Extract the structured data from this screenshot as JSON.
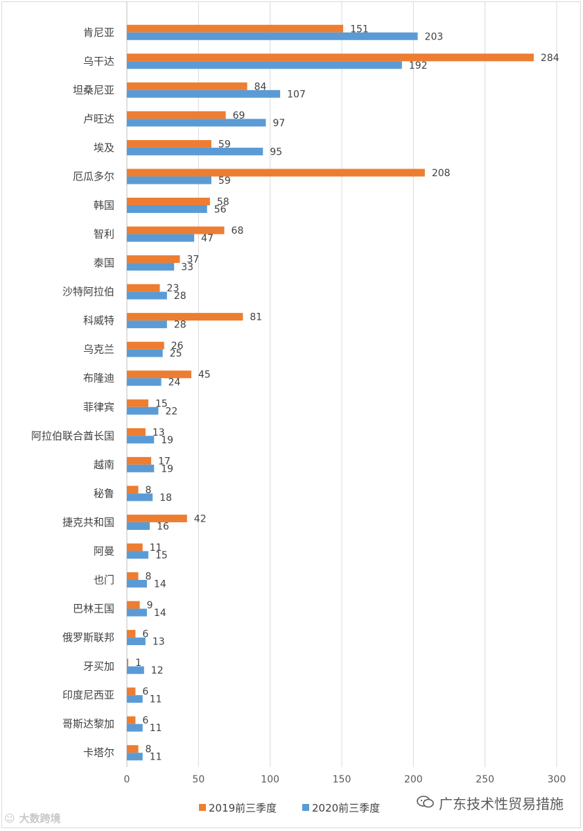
{
  "colors": {
    "series_2019": "#ed7d31",
    "series_2020": "#5b9bd5",
    "grid": "#d9d9d9",
    "axis": "#bfbfbf",
    "text": "#404040"
  },
  "chart_data": {
    "type": "bar",
    "orientation": "horizontal",
    "categories": [
      "肯尼亚",
      "乌干达",
      "坦桑尼亚",
      "卢旺达",
      "埃及",
      "厄瓜多尔",
      "韩国",
      "智利",
      "泰国",
      "沙特阿拉伯",
      "科威特",
      "乌克兰",
      "布隆迪",
      "菲律宾",
      "阿拉伯联合酋长国",
      "越南",
      "秘鲁",
      "捷克共和国",
      "阿曼",
      "也门",
      "巴林王国",
      "俄罗斯联邦",
      "牙买加",
      "印度尼西亚",
      "哥斯达黎加",
      "卡塔尔"
    ],
    "series": [
      {
        "name": "2019前三季度",
        "values": [
          151,
          284,
          84,
          69,
          59,
          208,
          58,
          68,
          37,
          23,
          81,
          26,
          45,
          15,
          13,
          17,
          8,
          42,
          11,
          8,
          9,
          6,
          1,
          6,
          6,
          8
        ]
      },
      {
        "name": "2020前三季度",
        "values": [
          203,
          192,
          107,
          97,
          95,
          59,
          56,
          47,
          33,
          28,
          28,
          25,
          24,
          22,
          19,
          19,
          18,
          16,
          15,
          14,
          14,
          13,
          12,
          11,
          11,
          11
        ]
      }
    ],
    "xlim": [
      0,
      300
    ],
    "ticks": [
      "0",
      "50",
      "100",
      "150",
      "200",
      "250",
      "300"
    ],
    "grid": true,
    "legend_position": "bottom",
    "data_labels": true
  },
  "legend": {
    "items": [
      "2019前三季度",
      "2020前三季度"
    ]
  },
  "watermarks": {
    "right": "广东技术性贸易措施",
    "left": "大数跨境"
  }
}
